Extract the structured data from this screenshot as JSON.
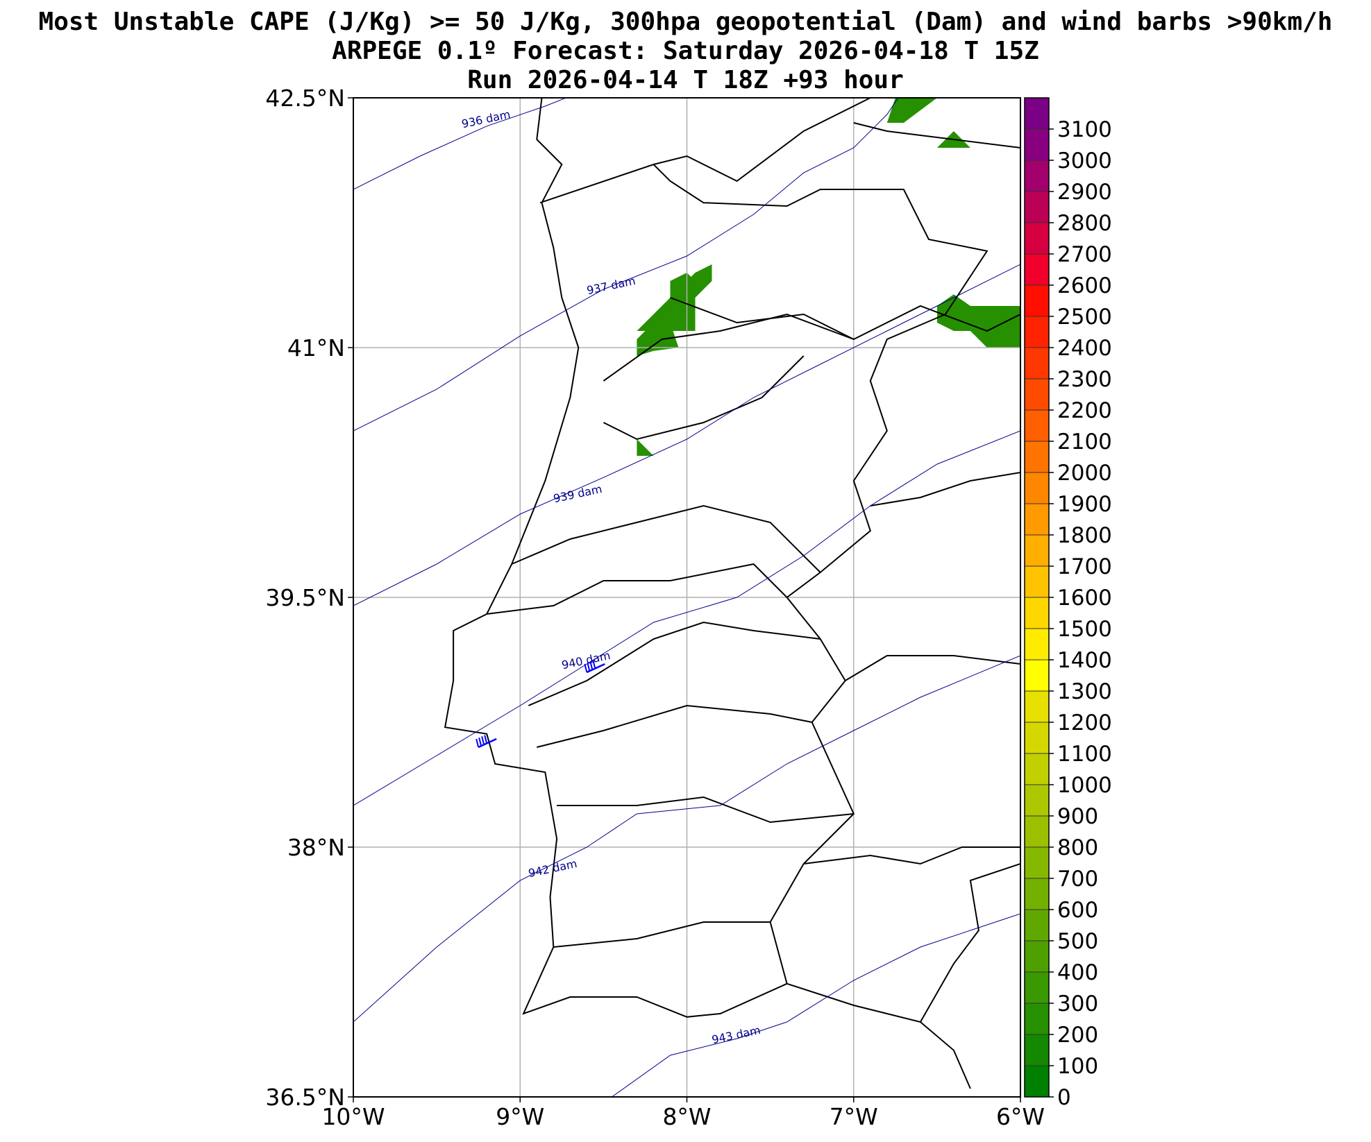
{
  "title": {
    "line1": "Most Unstable CAPE (J/Kg) >= 50 J/Kg, 300hpa geopotential (Dam) and wind barbs >90km/h",
    "line2": "ARPEGE 0.1º Forecast: Saturday 2026-04-18 T 15Z",
    "line3": "Run 2026-04-14 T 18Z +93 hour"
  },
  "map": {
    "lon_range": [
      -10,
      -6
    ],
    "lat_range": [
      36.5,
      42.5
    ],
    "grid": true,
    "lon_ticks": [
      {
        "value": -10,
        "label": "10°W"
      },
      {
        "value": -9,
        "label": "9°W"
      },
      {
        "value": -8,
        "label": "8°W"
      },
      {
        "value": -7,
        "label": "7°W"
      },
      {
        "value": -6,
        "label": "6°W"
      }
    ],
    "lat_ticks": [
      {
        "value": 42.5,
        "label": "42.5°N"
      },
      {
        "value": 41,
        "label": "41°N"
      },
      {
        "value": 39.5,
        "label": "39.5°N"
      },
      {
        "value": 38,
        "label": "38°N"
      },
      {
        "value": 36.5,
        "label": "36.5°N"
      }
    ]
  },
  "geopotential_contours": [
    {
      "label": "936 dam",
      "label_at": [
        -9.2,
        42.35
      ],
      "points": [
        [
          -10,
          41.95
        ],
        [
          -9.6,
          42.15
        ],
        [
          -9.2,
          42.33
        ],
        [
          -8.85,
          42.45
        ],
        [
          -8.65,
          42.53
        ]
      ]
    },
    {
      "label": "937 dam",
      "label_at": [
        -8.45,
        41.35
      ],
      "points": [
        [
          -10,
          40.5
        ],
        [
          -9.5,
          40.75
        ],
        [
          -9.0,
          41.07
        ],
        [
          -8.5,
          41.35
        ],
        [
          -8.0,
          41.55
        ],
        [
          -7.6,
          41.8
        ],
        [
          -7.3,
          42.05
        ],
        [
          -7.0,
          42.2
        ],
        [
          -6.8,
          42.4
        ],
        [
          -6.7,
          42.55
        ]
      ]
    },
    {
      "label": "939 dam",
      "label_at": [
        -8.65,
        40.1
      ],
      "points": [
        [
          -10,
          39.45
        ],
        [
          -9.5,
          39.7
        ],
        [
          -9.0,
          40.0
        ],
        [
          -8.5,
          40.22
        ],
        [
          -8.0,
          40.45
        ],
        [
          -7.6,
          40.7
        ],
        [
          -7.2,
          40.9
        ],
        [
          -6.8,
          41.1
        ],
        [
          -6.4,
          41.3
        ],
        [
          -6.0,
          41.5
        ]
      ]
    },
    {
      "label": "940 dam",
      "label_at": [
        -8.6,
        39.1
      ],
      "points": [
        [
          -10,
          38.25
        ],
        [
          -9.5,
          38.55
        ],
        [
          -9.0,
          38.85
        ],
        [
          -8.6,
          39.1
        ],
        [
          -8.2,
          39.35
        ],
        [
          -7.7,
          39.5
        ],
        [
          -7.3,
          39.75
        ],
        [
          -6.9,
          40.05
        ],
        [
          -6.5,
          40.3
        ],
        [
          -6.0,
          40.5
        ]
      ]
    },
    {
      "label": "942 dam",
      "label_at": [
        -8.8,
        37.85
      ],
      "points": [
        [
          -10,
          36.95
        ],
        [
          -9.5,
          37.4
        ],
        [
          -9.0,
          37.8
        ],
        [
          -8.6,
          38.0
        ],
        [
          -8.3,
          38.2
        ],
        [
          -7.8,
          38.25
        ],
        [
          -7.4,
          38.5
        ],
        [
          -7.0,
          38.7
        ],
        [
          -6.6,
          38.9
        ],
        [
          -6.0,
          39.15
        ]
      ]
    },
    {
      "label": "943 dam",
      "label_at": [
        -7.7,
        36.85
      ],
      "points": [
        [
          -8.45,
          36.5
        ],
        [
          -8.1,
          36.75
        ],
        [
          -7.7,
          36.85
        ],
        [
          -7.4,
          36.95
        ],
        [
          -7.0,
          37.2
        ],
        [
          -6.6,
          37.4
        ],
        [
          -6.0,
          37.6
        ]
      ]
    }
  ],
  "cape_areas": [
    {
      "value": 250,
      "points": [
        [
          -8.3,
          41.1
        ],
        [
          -8.1,
          41.3
        ],
        [
          -8.1,
          41.4
        ],
        [
          -8.0,
          41.45
        ],
        [
          -7.95,
          41.4
        ],
        [
          -7.95,
          41.1
        ]
      ]
    },
    {
      "value": 200,
      "points": [
        [
          -8.3,
          40.95
        ],
        [
          -8.3,
          41.05
        ],
        [
          -8.15,
          41.2
        ],
        [
          -8.1,
          41.15
        ],
        [
          -8.05,
          41.0
        ],
        [
          -8.2,
          40.98
        ]
      ]
    },
    {
      "value": 200,
      "points": [
        [
          -8.05,
          41.35
        ],
        [
          -7.95,
          41.45
        ],
        [
          -7.85,
          41.5
        ],
        [
          -7.85,
          41.4
        ],
        [
          -7.95,
          41.3
        ]
      ]
    },
    {
      "value": 200,
      "points": [
        [
          -8.3,
          40.45
        ],
        [
          -8.3,
          40.35
        ],
        [
          -8.2,
          40.35
        ]
      ]
    },
    {
      "value": 200,
      "points": [
        [
          -6.5,
          41.15
        ],
        [
          -6.5,
          41.25
        ],
        [
          -6.4,
          41.32
        ],
        [
          -6.3,
          41.25
        ],
        [
          -6.0,
          41.25
        ],
        [
          -6.0,
          41.0
        ],
        [
          -6.2,
          41.0
        ],
        [
          -6.3,
          41.1
        ],
        [
          -6.4,
          41.1
        ]
      ]
    },
    {
      "value": 250,
      "points": [
        [
          -6.8,
          42.35
        ],
        [
          -6.75,
          42.5
        ],
        [
          -6.5,
          42.5
        ],
        [
          -6.7,
          42.35
        ]
      ]
    },
    {
      "value": 200,
      "points": [
        [
          -6.5,
          42.2
        ],
        [
          -6.4,
          42.3
        ],
        [
          -6.3,
          42.2
        ]
      ]
    }
  ],
  "wind_barbs": [
    {
      "lon": -8.6,
      "lat": 39.05
    },
    {
      "lon": -9.25,
      "lat": 38.6
    }
  ],
  "colorbar": {
    "min": 0,
    "max": 3200,
    "colors": [
      "#008000",
      "#138800",
      "#269000",
      "#3a9800",
      "#4da000",
      "#60a800",
      "#73b000",
      "#87b800",
      "#9ac000",
      "#adc800",
      "#c0d000",
      "#d4d800",
      "#e7e000",
      "#ffff00",
      "#ffeb00",
      "#ffd700",
      "#ffc300",
      "#ffaf00",
      "#ff9b00",
      "#ff8700",
      "#ff7300",
      "#ff5f00",
      "#ff4b00",
      "#ff3700",
      "#ff2300",
      "#ff0f00",
      "#f0002a",
      "#d60040",
      "#bc0056",
      "#a2006c",
      "#880080",
      "#7a0084"
    ],
    "ticks": [
      "0",
      "100",
      "200",
      "300",
      "400",
      "500",
      "600",
      "700",
      "800",
      "900",
      "1000",
      "1100",
      "1200",
      "1300",
      "1400",
      "1500",
      "1600",
      "1700",
      "1800",
      "1900",
      "2000",
      "2100",
      "2200",
      "2300",
      "2400",
      "2500",
      "2600",
      "2700",
      "2800",
      "2900",
      "3000",
      "3100"
    ]
  }
}
